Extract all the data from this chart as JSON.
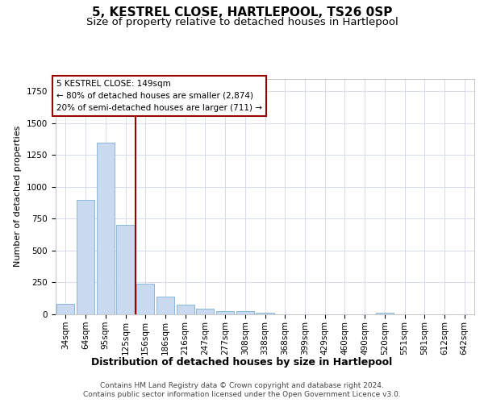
{
  "title": "5, KESTREL CLOSE, HARTLEPOOL, TS26 0SP",
  "subtitle": "Size of property relative to detached houses in Hartlepool",
  "xlabel": "Distribution of detached houses by size in Hartlepool",
  "ylabel": "Number of detached properties",
  "categories": [
    "34sqm",
    "64sqm",
    "95sqm",
    "125sqm",
    "156sqm",
    "186sqm",
    "216sqm",
    "247sqm",
    "277sqm",
    "308sqm",
    "338sqm",
    "368sqm",
    "399sqm",
    "429sqm",
    "460sqm",
    "490sqm",
    "520sqm",
    "551sqm",
    "581sqm",
    "612sqm",
    "642sqm"
  ],
  "values": [
    80,
    900,
    1350,
    700,
    240,
    140,
    75,
    45,
    25,
    25,
    15,
    0,
    0,
    0,
    0,
    0,
    15,
    0,
    0,
    0,
    0
  ],
  "bar_color": "#c9d9f0",
  "bar_edge_color": "#7bafd4",
  "vline_color": "#990000",
  "vline_x_index": 4,
  "annotation_text": "5 KESTREL CLOSE: 149sqm\n← 80% of detached houses are smaller (2,874)\n20% of semi-detached houses are larger (711) →",
  "annotation_box_color": "white",
  "annotation_box_edge_color": "#990000",
  "annotation_fontsize": 7.5,
  "title_fontsize": 11,
  "subtitle_fontsize": 9.5,
  "xlabel_fontsize": 9,
  "ylabel_fontsize": 8,
  "tick_fontsize": 7.5,
  "ylim": [
    0,
    1850
  ],
  "footer_line1": "Contains HM Land Registry data © Crown copyright and database right 2024.",
  "footer_line2": "Contains public sector information licensed under the Open Government Licence v3.0.",
  "footer_fontsize": 6.5,
  "background_color": "#ffffff",
  "grid_color": "#d0d8e8"
}
